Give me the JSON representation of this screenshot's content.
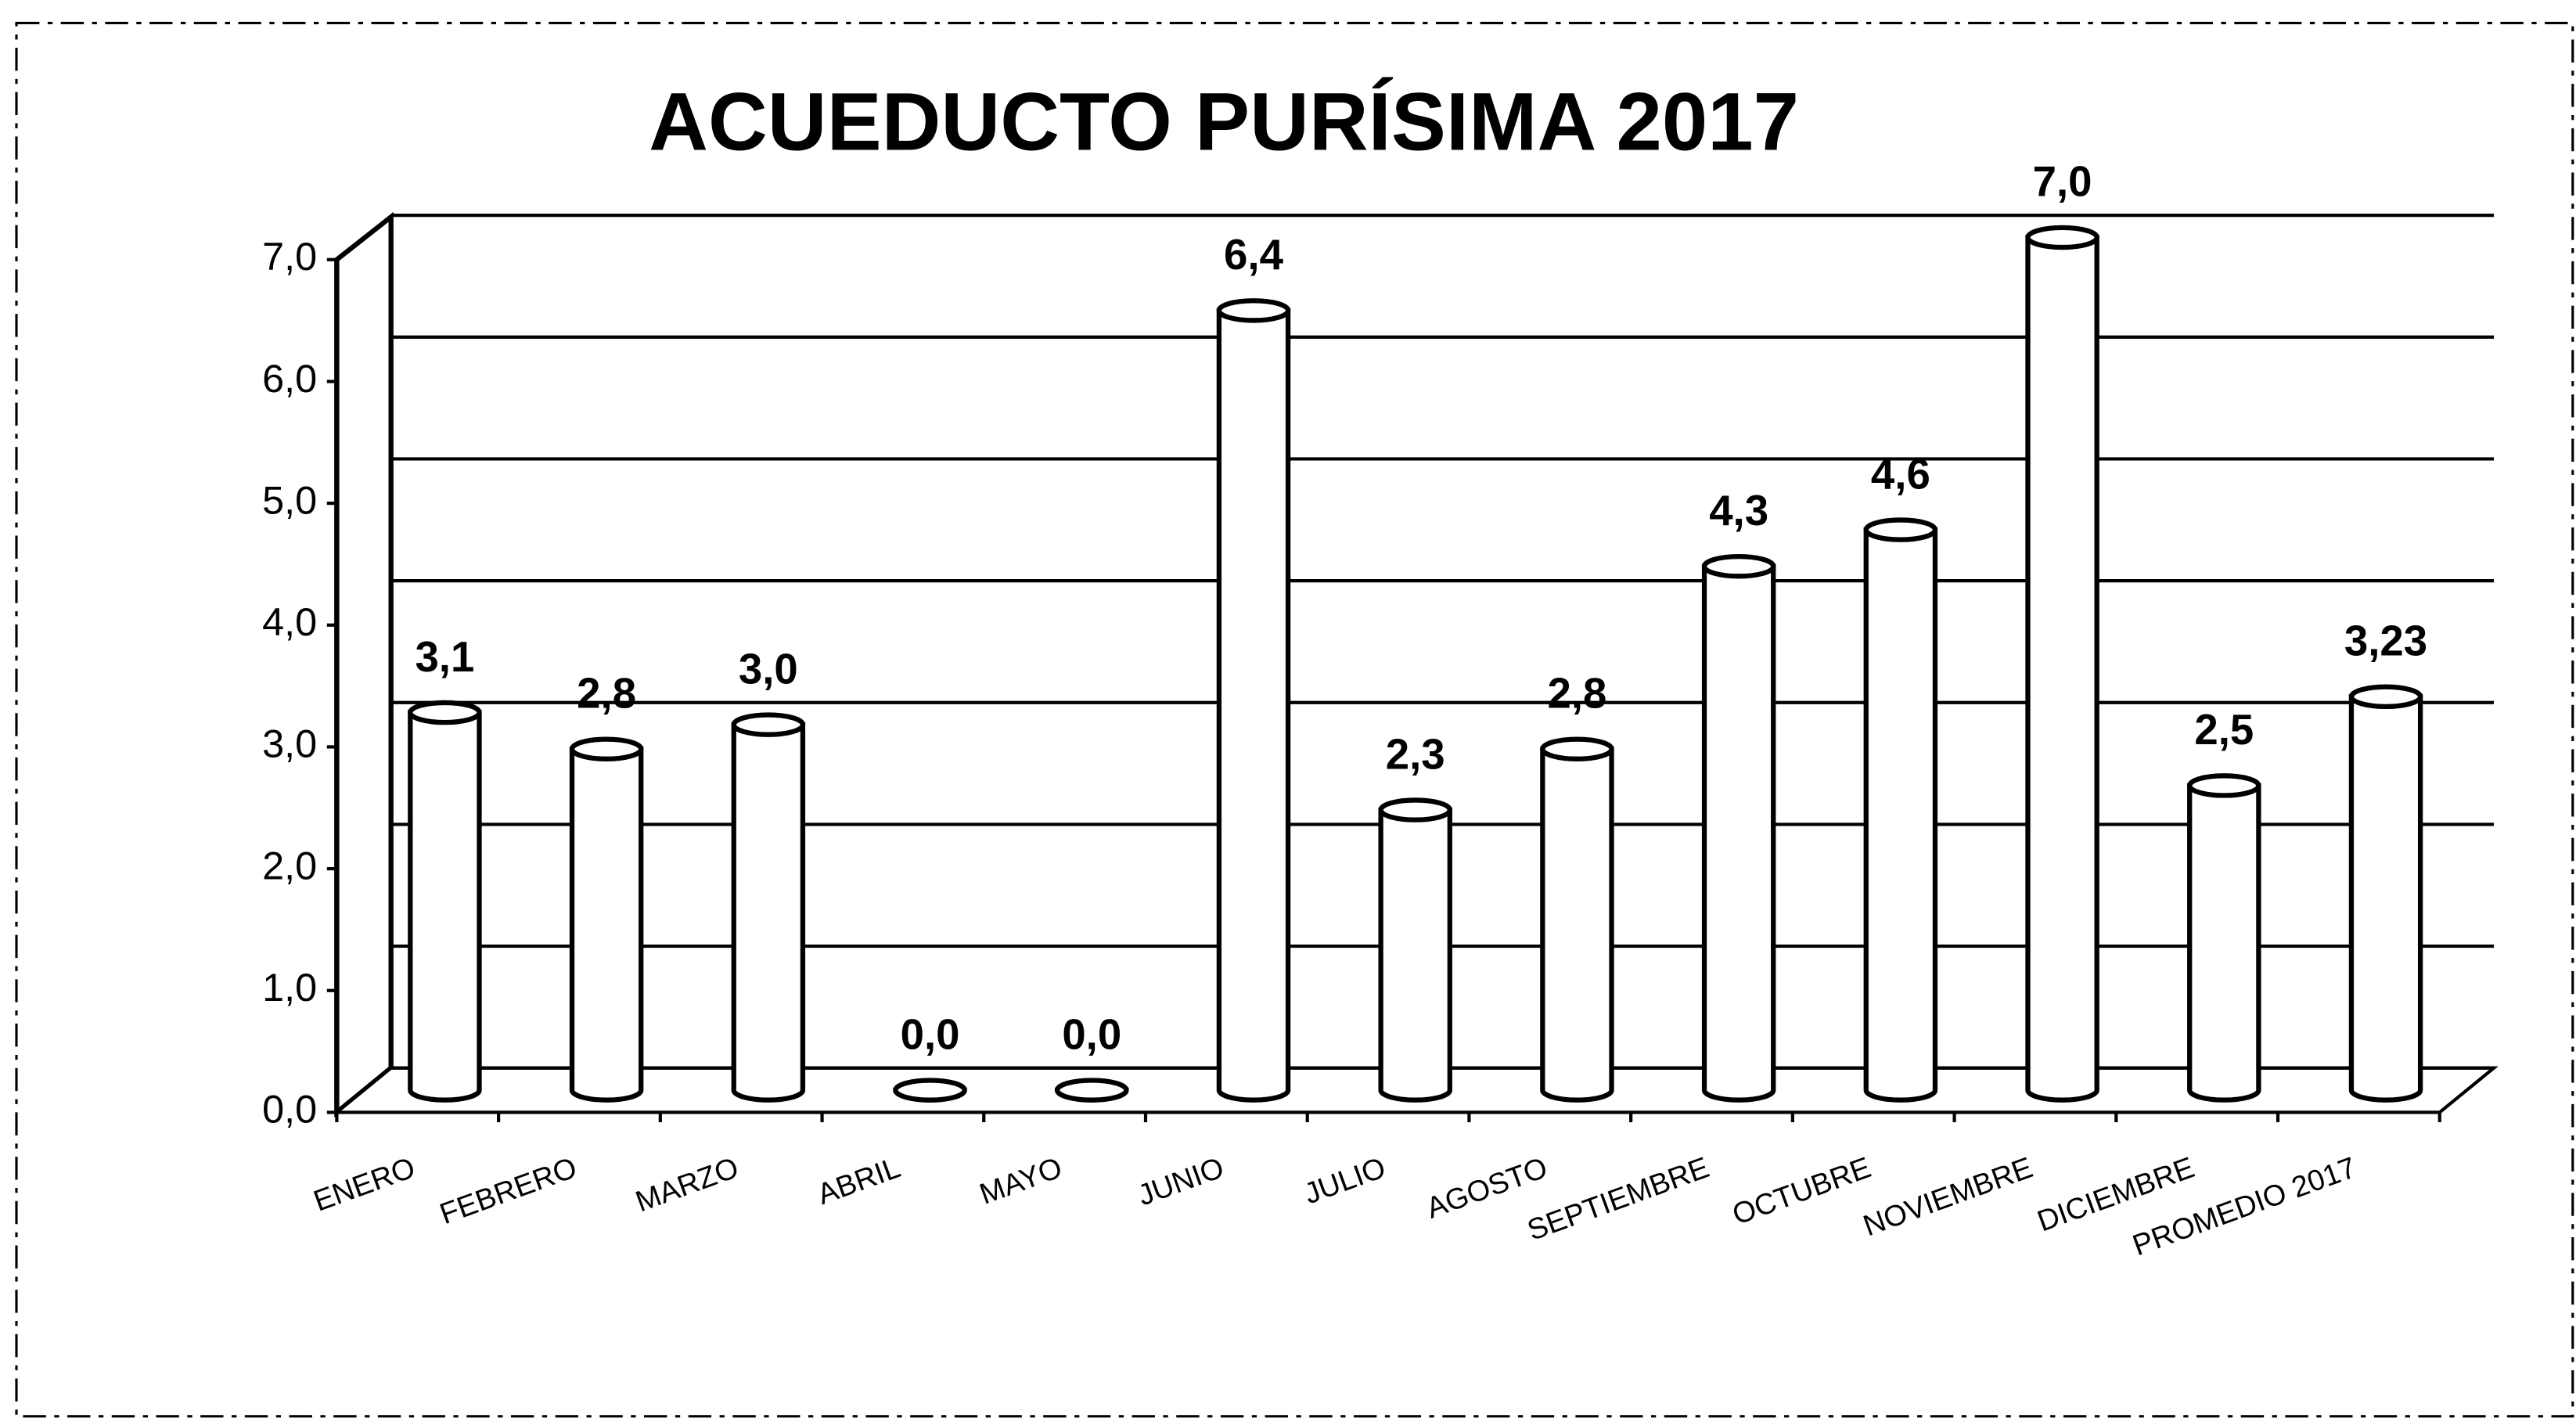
{
  "chart_data": {
    "type": "bar",
    "title": "ACUEDUCTO PURÍSIMA 2017",
    "categories": [
      "ENERO",
      "FEBRERO",
      "MARZO",
      "ABRIL",
      "MAYO",
      "JUNIO",
      "JULIO",
      "AGOSTO",
      "SEPTIEMBRE",
      "OCTUBRE",
      "NOVIEMBRE",
      "DICIEMBRE",
      "PROMEDIO 2017"
    ],
    "values": [
      3.1,
      2.8,
      3.0,
      0.0,
      0.0,
      6.4,
      2.3,
      2.8,
      4.3,
      4.6,
      7.0,
      2.5,
      3.23
    ],
    "value_labels": [
      "3,1",
      "2,8",
      "3,0",
      "0,0",
      "0,0",
      "6,4",
      "2,3",
      "2,8",
      "4,3",
      "4,6",
      "7,0",
      "2,5",
      "3,23"
    ],
    "color": "#ffffff",
    "ylim": [
      0,
      7
    ],
    "yticks": [
      {
        "value": 0,
        "label": "0,0"
      },
      {
        "value": 1,
        "label": "1,0"
      },
      {
        "value": 2,
        "label": "2,0"
      },
      {
        "value": 3,
        "label": "3,0"
      },
      {
        "value": 4,
        "label": "4,0"
      },
      {
        "value": 5,
        "label": "5,0"
      },
      {
        "value": 6,
        "label": "6,0"
      },
      {
        "value": 7,
        "label": "7,0"
      }
    ],
    "grid": true
  }
}
